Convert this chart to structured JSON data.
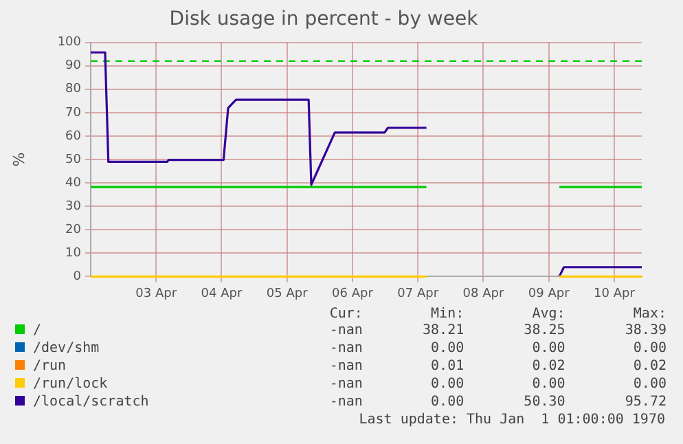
{
  "chart_data": {
    "type": "line",
    "title": "Disk usage in percent - by week",
    "ylabel": "%",
    "xlim": [
      "--04-02T00:00",
      "--04-10T10:05"
    ],
    "xticks": [
      {
        "value": "--04-03",
        "label": "03 Apr"
      },
      {
        "value": "--04-04",
        "label": "04 Apr"
      },
      {
        "value": "--04-05",
        "label": "05 Apr"
      },
      {
        "value": "--04-06",
        "label": "06 Apr"
      },
      {
        "value": "--04-07",
        "label": "07 Apr"
      },
      {
        "value": "--04-08",
        "label": "08 Apr"
      },
      {
        "value": "--04-09",
        "label": "09 Apr"
      },
      {
        "value": "--04-10",
        "label": "10 Apr"
      }
    ],
    "ylim": [
      0,
      100
    ],
    "yticks": [
      0,
      10,
      20,
      30,
      40,
      50,
      60,
      70,
      80,
      90,
      100
    ],
    "grid": true,
    "legend": "bottom",
    "marker": "none",
    "series": [
      {
        "name": "/",
        "color": "#00cc00",
        "x": [
          "--04-02T00:00",
          "--04-07T03:07",
          "--04-07T03:22",
          "--04-09T03:50",
          "--04-10T10:05"
        ],
        "values": [
          38.2,
          38.2,
          null,
          38.2,
          38.2
        ]
      },
      {
        "name": "/dev/shm",
        "color": "#0066b3"
      },
      {
        "name": "/run",
        "color": "#ff8000"
      },
      {
        "name": "/run/lock",
        "color": "#ffcc00",
        "x": [
          "--04-02T00:00",
          "--04-07T03:07",
          "--04-07T03:22",
          "--04-09T03:50",
          "--04-10T10:05"
        ],
        "values": [
          0,
          0,
          null,
          0,
          0
        ]
      },
      {
        "name": "/local/scratch",
        "color": "#330099",
        "x": [
          "--04-02T00:00",
          "--04-02T05:17",
          "--04-02T06:29",
          "--04-03T04:05",
          "--04-03T04:34",
          "--04-04T00:43",
          "--04-04T02:24",
          "--04-04T05:17",
          "--04-05T07:55",
          "--04-05T08:53",
          "--04-05T17:31",
          "--04-06T11:46",
          "--04-06T12:58",
          "--04-07T03:07",
          "--04-07T03:22",
          "--04-09T03:50",
          "--04-09T05:31",
          "--04-10T10:05"
        ],
        "values": [
          95.7,
          95.7,
          49,
          49,
          49.8,
          49.8,
          72,
          75.5,
          75.5,
          39.2,
          61.5,
          61.5,
          63.5,
          63.5,
          null,
          0,
          4,
          4
        ]
      }
    ],
    "ref_lines": [
      {
        "axis": "y",
        "value": 92,
        "color": "#00cc00",
        "line_style": "dashed"
      }
    ],
    "annotations": [
      "Cur:",
      "Min:",
      "Avg:",
      "Max:",
      "-nan",
      "38.21",
      "38.25",
      "38.39",
      "-nan",
      "0.00",
      "0.00",
      "0.00",
      "-nan",
      "0.01",
      "0.02",
      "0.02",
      "-nan",
      "0.00",
      "0.00",
      "0.00",
      "-nan",
      "0.00",
      "50.30",
      "95.72",
      "Last update: Thu Jan  1 01:00:00 1970"
    ]
  }
}
